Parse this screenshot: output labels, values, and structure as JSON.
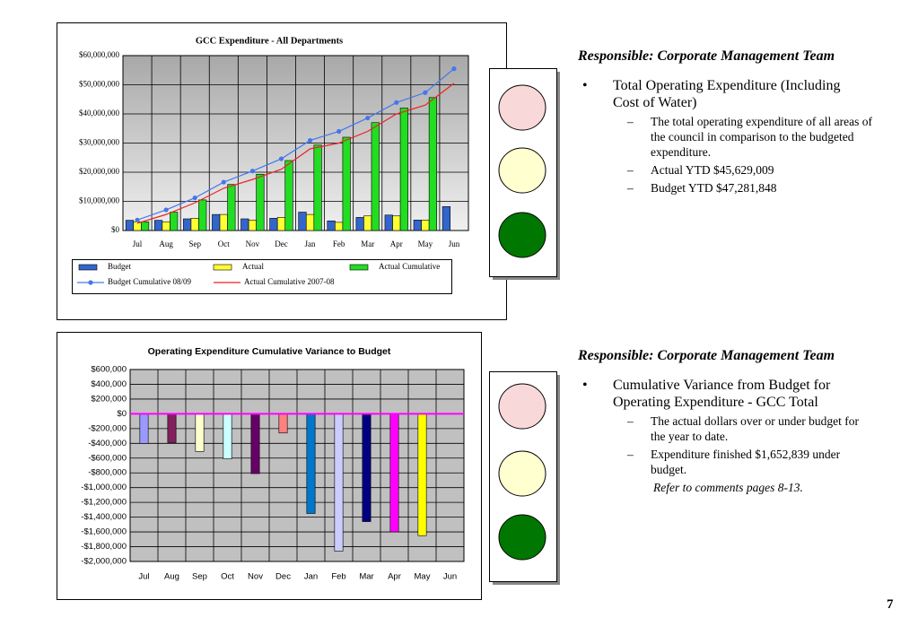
{
  "chart_data": [
    {
      "type": "bar",
      "title": "GCC Expenditure - All Departments",
      "categories": [
        "Jul",
        "Aug",
        "Sep",
        "Oct",
        "Nov",
        "Dec",
        "Jan",
        "Feb",
        "Mar",
        "Apr",
        "May",
        "Jun"
      ],
      "series": [
        {
          "name": "Budget",
          "color": "#3366cc",
          "values": [
            3500000,
            3500000,
            4000000,
            5500000,
            4000000,
            4200000,
            6300000,
            3300000,
            4500000,
            5300000,
            3600000,
            8200000
          ]
        },
        {
          "name": "Actual",
          "color": "#ffff33",
          "values": [
            3000000,
            3000000,
            4200000,
            5500000,
            3600000,
            4500000,
            5500000,
            2800000,
            5000000,
            5000000,
            3600000,
            null
          ]
        },
        {
          "name": "Actual Cumulative",
          "color": "#22dd22",
          "values": [
            3000000,
            6300000,
            10500000,
            15800000,
            19300000,
            24000000,
            29300000,
            32000000,
            37000000,
            42000000,
            45600000,
            null
          ]
        },
        {
          "name": "Budget Cumulative 08/09",
          "color": "#4477ee",
          "type": "line",
          "marker": "circle",
          "values": [
            3600000,
            7100000,
            11200000,
            16600000,
            20400000,
            24600000,
            30900000,
            34000000,
            38600000,
            43900000,
            47300000,
            55500000
          ]
        },
        {
          "name": "Actual Cumulative 2007-08",
          "color": "#ee2222",
          "type": "line",
          "values": [
            2500000,
            5500000,
            9500000,
            14500000,
            17500000,
            21000000,
            28000000,
            30000000,
            34000000,
            40000000,
            43000000,
            50500000
          ]
        }
      ],
      "ylim": [
        0,
        60000000
      ],
      "yticks": [
        {
          "value": 0,
          "label": "$0"
        },
        {
          "value": 10000000,
          "label": "$10,000,000"
        },
        {
          "value": 20000000,
          "label": "$20,000,000"
        },
        {
          "value": 30000000,
          "label": "$30,000,000"
        },
        {
          "value": 40000000,
          "label": "$40,000,000"
        },
        {
          "value": 50000000,
          "label": "$50,000,000"
        },
        {
          "value": 60000000,
          "label": "$60,000,000"
        }
      ],
      "grid": true,
      "legend": "bottom"
    },
    {
      "type": "bar",
      "title": "Operating Expenditure Cumulative Variance to Budget",
      "categories": [
        "Jul",
        "Aug",
        "Sep",
        "Oct",
        "Nov",
        "Dec",
        "Jan",
        "Feb",
        "Mar",
        "Apr",
        "May",
        "Jun"
      ],
      "values": [
        -400000,
        -390000,
        -510000,
        -610000,
        -810000,
        -260000,
        -1350000,
        -1860000,
        -1460000,
        -1600000,
        -1650000,
        null
      ],
      "colors": [
        "#9999ff",
        "#80205f",
        "#ffffcc",
        "#ccffff",
        "#660066",
        "#ff8080",
        "#0077cc",
        "#ccccff",
        "#000080",
        "#ff00ff",
        "#ffff00",
        null
      ],
      "zero_line_color": "#ff00ff",
      "ylim": [
        -2000000,
        600000
      ],
      "yticks": [
        {
          "value": 600000,
          "label": "$600,000"
        },
        {
          "value": 400000,
          "label": "$400,000"
        },
        {
          "value": 200000,
          "label": "$200,000"
        },
        {
          "value": 0,
          "label": "$0"
        },
        {
          "value": -200000,
          "label": "-$200,000"
        },
        {
          "value": -400000,
          "label": "-$400,000"
        },
        {
          "value": -600000,
          "label": "-$600,000"
        },
        {
          "value": -800000,
          "label": "-$800,000"
        },
        {
          "value": -1000000,
          "label": "-$1,000,000"
        },
        {
          "value": -1200000,
          "label": "-$1,200,000"
        },
        {
          "value": -1400000,
          "label": "-$1,400,000"
        },
        {
          "value": -1600000,
          "label": "-$1,600,000"
        },
        {
          "value": -1800000,
          "label": "-$1,800,000"
        },
        {
          "value": -2000000,
          "label": "-$2,000,000"
        }
      ],
      "grid": true
    }
  ],
  "sections": [
    {
      "heading": "Responsible: Corporate Management Team",
      "bullet": "Total Operating Expenditure (Including Cost of Water)",
      "items": [
        "The total operating expenditure of all areas of the council in comparison to the budgeted expenditure.",
        "Actual  YTD  $45,629,009",
        "Budget YTD  $47,281,848"
      ]
    },
    {
      "heading": "Responsible: Corporate Management Team",
      "bullet": "Cumulative Variance from Budget for Operating Expenditure - GCC Total",
      "items": [
        "The actual dollars over or under budget for the year to date.",
        "Expenditure finished $1,652,839 under budget."
      ],
      "note": "Refer to comments pages 8-13."
    }
  ],
  "page_number": "7"
}
